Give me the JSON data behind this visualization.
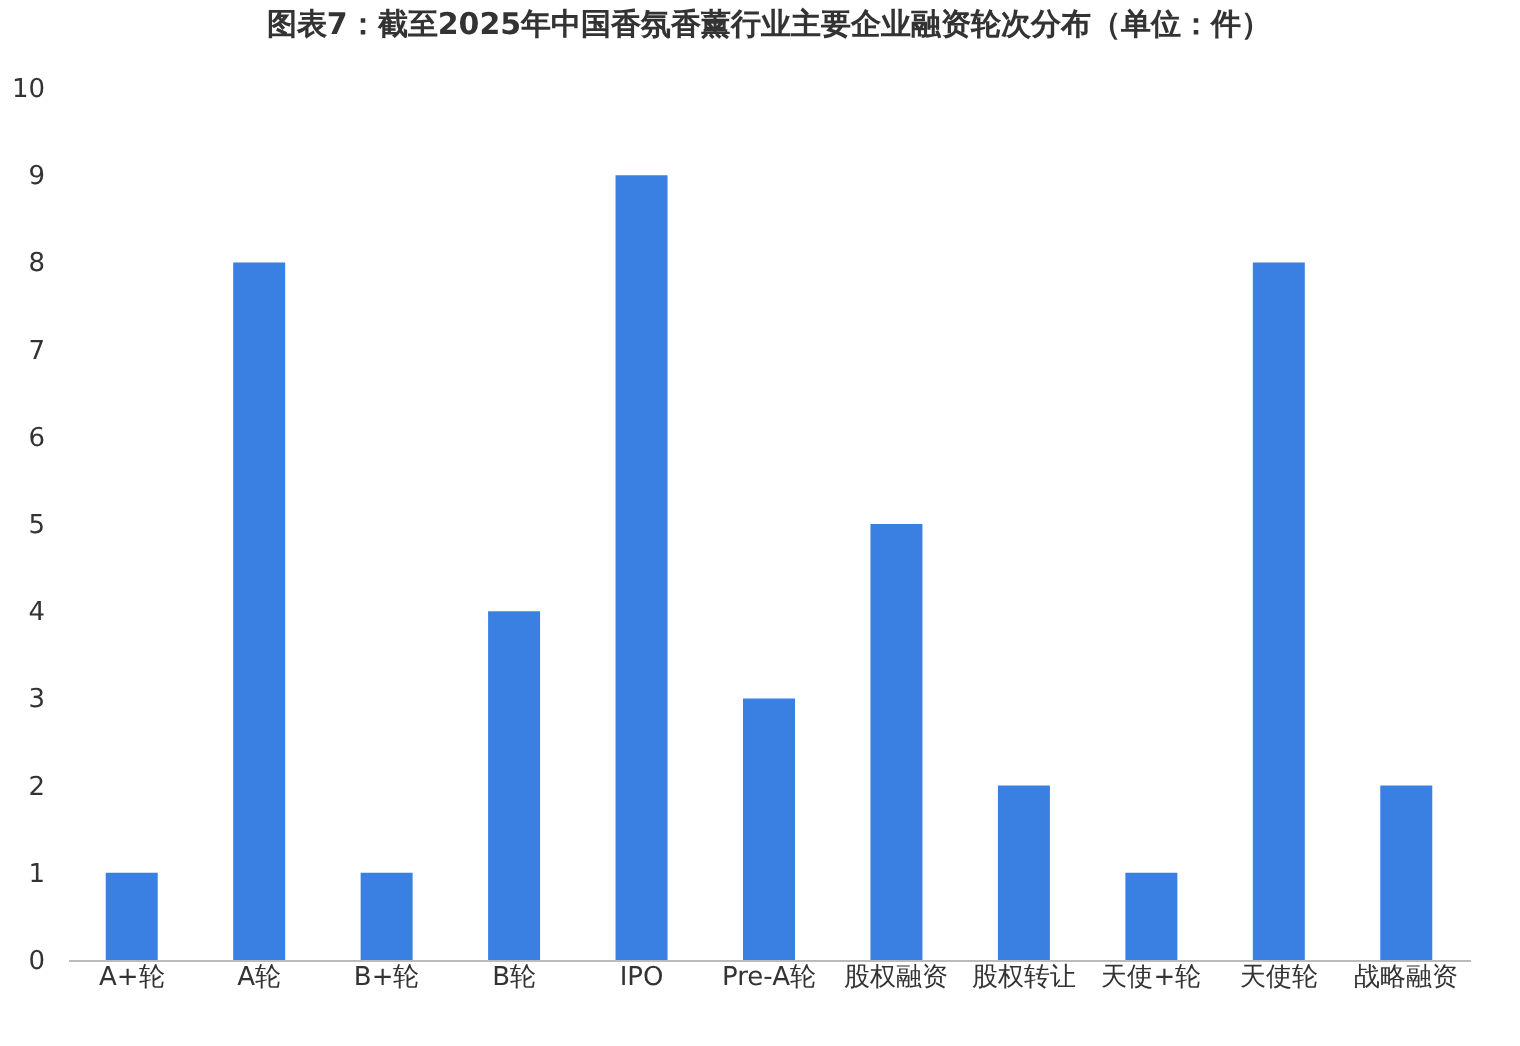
{
  "chart_data": {
    "type": "bar",
    "title": "图表7：截至2025年中国香氛香薰行业主要企业融资轮次分布（单位：件）",
    "categories": [
      "A+轮",
      "A轮",
      "B+轮",
      "B轮",
      "IPO",
      "Pre-A轮",
      "股权融资",
      "股权转让",
      "天使+轮",
      "天使轮",
      "战略融资"
    ],
    "values": [
      1,
      8,
      1,
      4,
      9,
      3,
      5,
      2,
      1,
      8,
      2
    ],
    "color": "#3a80e3",
    "ylim": [
      0,
      10
    ],
    "yticks": [
      0,
      1,
      2,
      3,
      4,
      5,
      6,
      7,
      8,
      9,
      10
    ],
    "grid": false
  }
}
